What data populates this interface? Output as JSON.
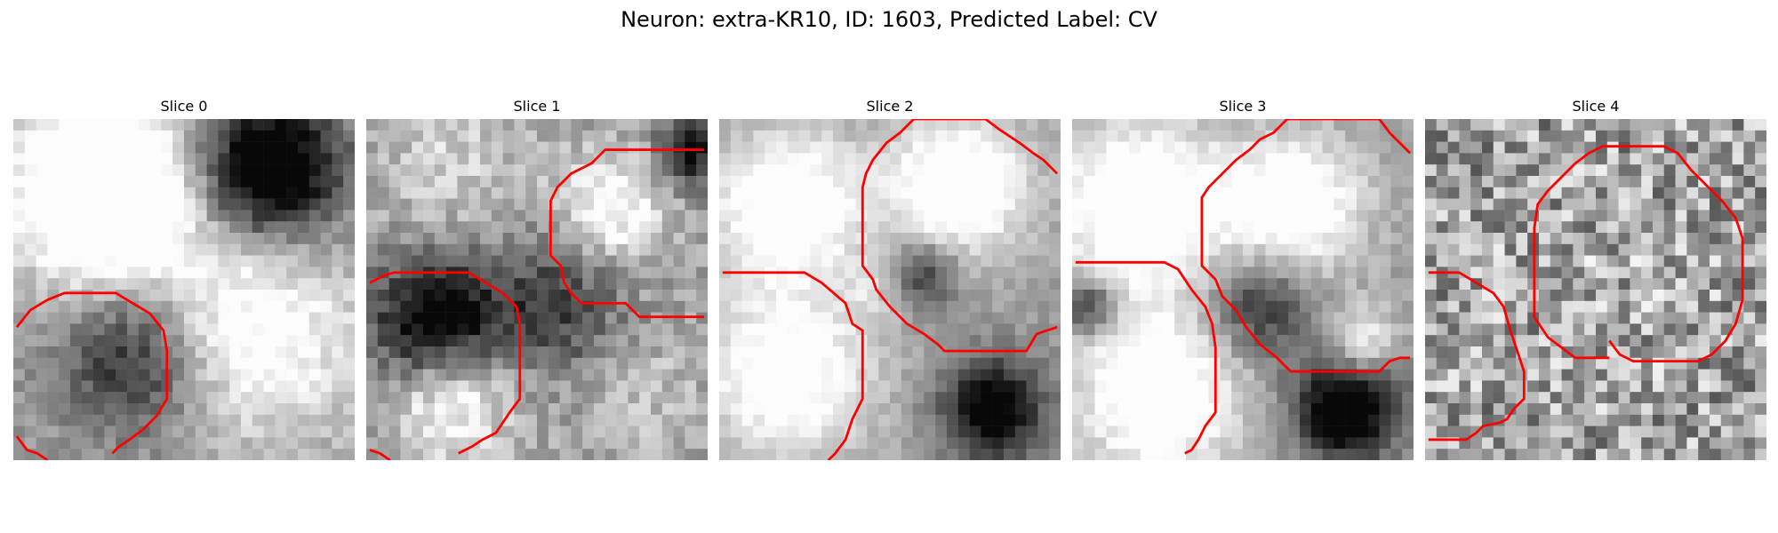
{
  "figure": {
    "title": "Neuron: extra-KR10, ID: 1603, Predicted Label: CV"
  },
  "colors": {
    "contour": "#ff0000",
    "background": "#ffffff"
  },
  "panels": [
    {
      "title": "Slice 0",
      "seed": 11,
      "blobs": [
        [
          0.25,
          0.2,
          0.25,
          0.85
        ],
        [
          0.75,
          0.15,
          0.2,
          -0.9
        ],
        [
          0.35,
          0.7,
          0.22,
          -0.55
        ],
        [
          0.75,
          0.65,
          0.3,
          0.35
        ],
        [
          0.5,
          0.5,
          0.35,
          0.2
        ]
      ],
      "noise": 0.1,
      "contours": [
        [
          [
            0.01,
            0.61
          ],
          [
            0.05,
            0.56
          ],
          [
            0.1,
            0.53
          ],
          [
            0.15,
            0.51
          ],
          [
            0.3,
            0.51
          ],
          [
            0.35,
            0.54
          ],
          [
            0.4,
            0.57
          ],
          [
            0.44,
            0.62
          ],
          [
            0.45,
            0.68
          ],
          [
            0.45,
            0.82
          ],
          [
            0.42,
            0.87
          ],
          [
            0.38,
            0.91
          ],
          [
            0.34,
            0.94
          ],
          [
            0.31,
            0.96
          ],
          [
            0.29,
            0.98
          ]
        ],
        [
          [
            0.01,
            0.93
          ],
          [
            0.04,
            0.97
          ],
          [
            0.07,
            0.98
          ],
          [
            0.1,
            1.0
          ]
        ]
      ]
    },
    {
      "title": "Slice 1",
      "seed": 23,
      "blobs": [
        [
          0.25,
          0.12,
          0.22,
          0.2
        ],
        [
          0.72,
          0.26,
          0.16,
          0.45
        ],
        [
          0.2,
          0.6,
          0.18,
          -0.75
        ],
        [
          0.25,
          0.82,
          0.18,
          0.45
        ],
        [
          0.55,
          0.55,
          0.2,
          -0.4
        ],
        [
          0.95,
          0.1,
          0.1,
          -0.55
        ],
        [
          0.8,
          0.8,
          0.2,
          0.15
        ]
      ],
      "noise": 0.13,
      "contours": [
        [
          [
            0.01,
            0.48
          ],
          [
            0.05,
            0.46
          ],
          [
            0.08,
            0.45
          ],
          [
            0.3,
            0.45
          ],
          [
            0.35,
            0.48
          ],
          [
            0.4,
            0.51
          ],
          [
            0.44,
            0.55
          ],
          [
            0.45,
            0.6
          ],
          [
            0.45,
            0.82
          ],
          [
            0.42,
            0.86
          ],
          [
            0.38,
            0.92
          ],
          [
            0.34,
            0.94
          ],
          [
            0.31,
            0.96
          ],
          [
            0.27,
            0.98
          ]
        ],
        [
          [
            0.01,
            0.97
          ],
          [
            0.04,
            0.98
          ],
          [
            0.07,
            1.0
          ]
        ],
        [
          [
            0.99,
            0.09
          ],
          [
            0.7,
            0.09
          ],
          [
            0.66,
            0.13
          ],
          [
            0.6,
            0.16
          ],
          [
            0.56,
            0.2
          ],
          [
            0.54,
            0.24
          ],
          [
            0.54,
            0.4
          ],
          [
            0.57,
            0.43
          ],
          [
            0.58,
            0.48
          ],
          [
            0.6,
            0.51
          ],
          [
            0.63,
            0.54
          ],
          [
            0.76,
            0.54
          ],
          [
            0.8,
            0.58
          ],
          [
            0.99,
            0.58
          ]
        ]
      ]
    },
    {
      "title": "Slice 2",
      "seed": 37,
      "blobs": [
        [
          0.2,
          0.25,
          0.22,
          0.55
        ],
        [
          0.7,
          0.2,
          0.2,
          0.6
        ],
        [
          0.2,
          0.75,
          0.25,
          0.5
        ],
        [
          0.6,
          0.45,
          0.1,
          -0.45
        ],
        [
          0.8,
          0.85,
          0.15,
          -0.7
        ],
        [
          0.45,
          0.5,
          0.1,
          0.15
        ]
      ],
      "noise": 0.07,
      "contours": [
        [
          [
            0.01,
            0.45
          ],
          [
            0.25,
            0.45
          ],
          [
            0.3,
            0.48
          ],
          [
            0.37,
            0.54
          ],
          [
            0.39,
            0.6
          ],
          [
            0.42,
            0.62
          ],
          [
            0.42,
            0.82
          ],
          [
            0.39,
            0.88
          ],
          [
            0.37,
            0.94
          ],
          [
            0.34,
            0.98
          ],
          [
            0.32,
            1.0
          ]
        ],
        [
          [
            0.99,
            0.16
          ],
          [
            0.95,
            0.12
          ],
          [
            0.92,
            0.1
          ],
          [
            0.88,
            0.07
          ],
          [
            0.82,
            0.03
          ],
          [
            0.78,
            0.0
          ],
          [
            0.57,
            0.0
          ],
          [
            0.53,
            0.04
          ],
          [
            0.49,
            0.07
          ],
          [
            0.45,
            0.12
          ],
          [
            0.43,
            0.16
          ],
          [
            0.42,
            0.2
          ],
          [
            0.42,
            0.43
          ],
          [
            0.45,
            0.47
          ],
          [
            0.46,
            0.5
          ],
          [
            0.5,
            0.55
          ],
          [
            0.55,
            0.6
          ],
          [
            0.6,
            0.63
          ],
          [
            0.64,
            0.66
          ],
          [
            0.66,
            0.68
          ],
          [
            0.9,
            0.68
          ],
          [
            0.93,
            0.63
          ],
          [
            0.96,
            0.62
          ],
          [
            0.99,
            0.61
          ]
        ]
      ]
    },
    {
      "title": "Slice 3",
      "seed": 53,
      "blobs": [
        [
          0.2,
          0.25,
          0.25,
          0.6
        ],
        [
          0.65,
          0.25,
          0.2,
          0.55
        ],
        [
          0.25,
          0.8,
          0.25,
          0.55
        ],
        [
          0.8,
          0.85,
          0.15,
          -0.8
        ],
        [
          0.55,
          0.55,
          0.15,
          -0.45
        ],
        [
          0.85,
          0.65,
          0.1,
          0.4
        ],
        [
          0.05,
          0.55,
          0.08,
          -0.5
        ]
      ],
      "noise": 0.08,
      "contours": [
        [
          [
            0.01,
            0.42
          ],
          [
            0.27,
            0.42
          ],
          [
            0.31,
            0.44
          ],
          [
            0.33,
            0.47
          ],
          [
            0.35,
            0.5
          ],
          [
            0.39,
            0.55
          ],
          [
            0.41,
            0.6
          ],
          [
            0.42,
            0.67
          ],
          [
            0.42,
            0.86
          ],
          [
            0.39,
            0.9
          ],
          [
            0.37,
            0.94
          ],
          [
            0.35,
            0.97
          ],
          [
            0.33,
            0.98
          ]
        ],
        [
          [
            0.99,
            0.1
          ],
          [
            0.96,
            0.07
          ],
          [
            0.93,
            0.04
          ],
          [
            0.9,
            0.0
          ],
          [
            0.63,
            0.0
          ],
          [
            0.59,
            0.04
          ],
          [
            0.55,
            0.06
          ],
          [
            0.52,
            0.09
          ],
          [
            0.48,
            0.12
          ],
          [
            0.44,
            0.16
          ],
          [
            0.4,
            0.2
          ],
          [
            0.38,
            0.23
          ],
          [
            0.38,
            0.43
          ],
          [
            0.42,
            0.47
          ],
          [
            0.44,
            0.52
          ],
          [
            0.48,
            0.56
          ],
          [
            0.51,
            0.61
          ],
          [
            0.55,
            0.66
          ],
          [
            0.6,
            0.7
          ],
          [
            0.64,
            0.74
          ],
          [
            0.9,
            0.74
          ],
          [
            0.93,
            0.71
          ],
          [
            0.96,
            0.7
          ],
          [
            0.99,
            0.7
          ]
        ]
      ]
    },
    {
      "title": "Slice 4",
      "seed": 71,
      "blobs": [
        [
          0.5,
          0.5,
          0.4,
          0.05
        ]
      ],
      "noise": 0.3,
      "contours": [
        [
          [
            0.01,
            0.45
          ],
          [
            0.1,
            0.45
          ],
          [
            0.15,
            0.48
          ],
          [
            0.2,
            0.51
          ],
          [
            0.23,
            0.55
          ],
          [
            0.25,
            0.62
          ],
          [
            0.27,
            0.68
          ],
          [
            0.29,
            0.74
          ],
          [
            0.29,
            0.82
          ],
          [
            0.26,
            0.85
          ],
          [
            0.24,
            0.88
          ],
          [
            0.22,
            0.89
          ],
          [
            0.17,
            0.9
          ],
          [
            0.15,
            0.92
          ],
          [
            0.12,
            0.94
          ],
          [
            0.01,
            0.94
          ]
        ],
        [
          [
            0.54,
            0.65
          ],
          [
            0.57,
            0.69
          ],
          [
            0.61,
            0.71
          ],
          [
            0.8,
            0.71
          ],
          [
            0.84,
            0.69
          ],
          [
            0.88,
            0.65
          ],
          [
            0.91,
            0.6
          ],
          [
            0.93,
            0.53
          ],
          [
            0.93,
            0.35
          ],
          [
            0.91,
            0.29
          ],
          [
            0.87,
            0.24
          ],
          [
            0.82,
            0.19
          ],
          [
            0.78,
            0.15
          ],
          [
            0.74,
            0.1
          ],
          [
            0.7,
            0.08
          ],
          [
            0.52,
            0.08
          ],
          [
            0.48,
            0.1
          ],
          [
            0.44,
            0.13
          ],
          [
            0.4,
            0.17
          ],
          [
            0.36,
            0.21
          ],
          [
            0.33,
            0.25
          ],
          [
            0.32,
            0.32
          ],
          [
            0.32,
            0.58
          ],
          [
            0.34,
            0.61
          ],
          [
            0.36,
            0.64
          ],
          [
            0.4,
            0.67
          ],
          [
            0.44,
            0.7
          ],
          [
            0.54,
            0.7
          ]
        ]
      ]
    }
  ]
}
